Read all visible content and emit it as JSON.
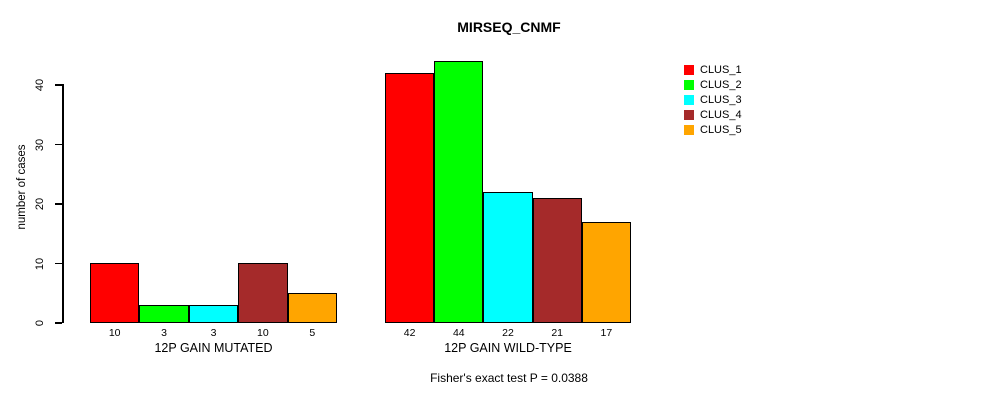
{
  "chart_data": {
    "type": "bar",
    "title": "MIRSEQ_CNMF",
    "ylabel": "number of cases",
    "xlabel": "",
    "yticks": [
      0,
      10,
      20,
      30,
      40
    ],
    "ylim": [
      0,
      44
    ],
    "grid": false,
    "legend_position": "right",
    "series": [
      {
        "name": "CLUS_1",
        "color": "#FF0000"
      },
      {
        "name": "CLUS_2",
        "color": "#00FF00"
      },
      {
        "name": "CLUS_3",
        "color": "#00FFFF"
      },
      {
        "name": "CLUS_4",
        "color": "#A52A2A"
      },
      {
        "name": "CLUS_5",
        "color": "#FFA500"
      }
    ],
    "groups": [
      {
        "label": "12P GAIN MUTATED",
        "values": [
          10,
          3,
          3,
          10,
          5
        ]
      },
      {
        "label": "12P GAIN WILD-TYPE",
        "values": [
          42,
          44,
          22,
          21,
          17
        ]
      }
    ],
    "annotation": "Fisher's exact test P = 0.0388"
  }
}
